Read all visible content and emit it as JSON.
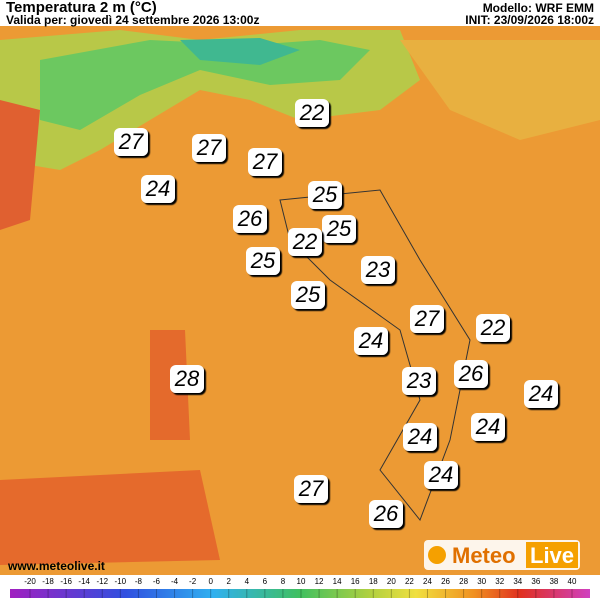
{
  "header": {
    "title": "Temperatura 2 m (°C)",
    "valid": "Valida per: giovedì 24 settembre 2026 13:00z",
    "model": "Modello: WRF EMM",
    "init": "INIT: 23/09/2026 18:00z"
  },
  "labels": [
    22,
    27,
    27,
    27,
    24,
    25,
    26,
    25,
    22,
    25,
    23,
    25,
    27,
    22,
    24,
    26,
    23,
    28,
    24,
    24,
    24,
    24,
    27,
    26
  ],
  "colorbar": {
    "ticks": [
      -20,
      -18,
      -16,
      -14,
      -12,
      -10,
      -8,
      -6,
      -4,
      -2,
      0,
      2,
      4,
      6,
      8,
      10,
      12,
      14,
      16,
      18,
      20,
      22,
      24,
      26,
      28,
      30,
      32,
      34,
      36,
      38,
      40
    ]
  },
  "footer": {
    "website": "www.meteolive.it",
    "logo_1": "Meteo",
    "logo_2": "Live"
  }
}
